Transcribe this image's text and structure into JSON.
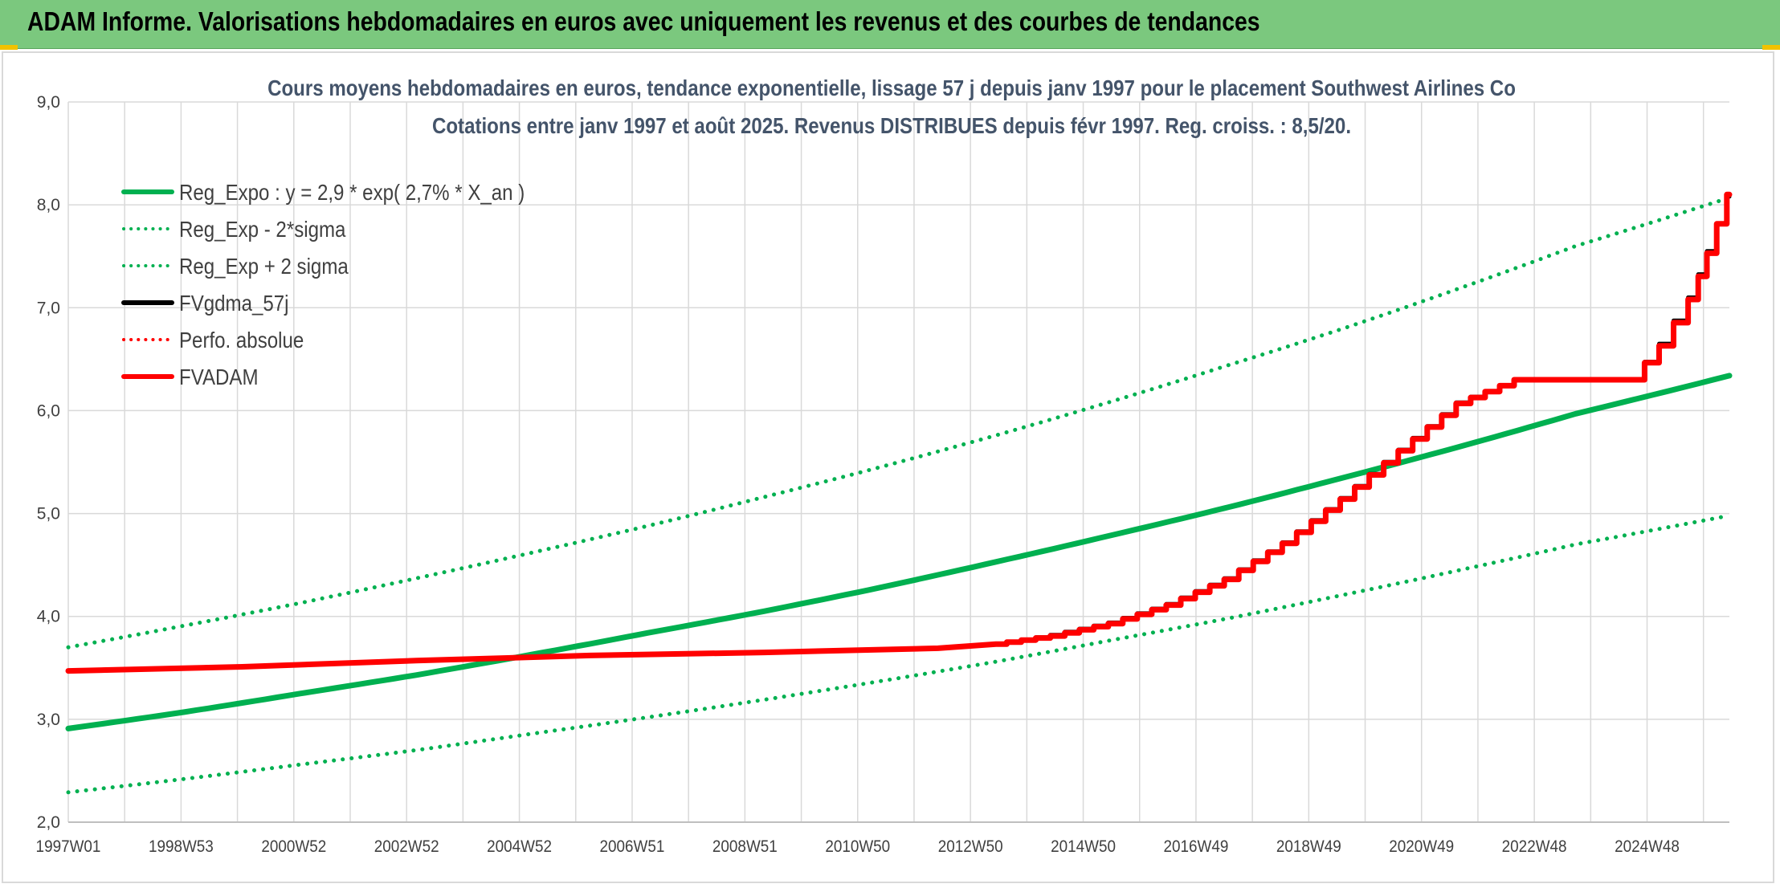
{
  "header": {
    "title": "ADAM Informe. Valorisations hebdomadaires en euros avec uniquement les revenus et des courbes de tendances"
  },
  "chart_data": {
    "type": "line",
    "title": "Cours moyens hebdomadaires en euros, tendance exponentielle, lissage 57 j depuis janv 1997 pour le placement Southwest Airlines Co",
    "subtitle": "Cotations entre janv 1997 et août 2025. Revenus DISTRIBUES depuis févr 1997. Reg. croiss. : 8,5/20.",
    "xlabel": "",
    "ylabel": "",
    "ylim": [
      2.0,
      9.0
    ],
    "y_ticks": [
      "2,0",
      "3,0",
      "4,0",
      "5,0",
      "6,0",
      "7,0",
      "8,0",
      "9,0"
    ],
    "x_ticks": [
      "1997W01",
      "1998W53",
      "2000W52",
      "2002W52",
      "2004W52",
      "2006W51",
      "2008W51",
      "2010W50",
      "2012W50",
      "2014W50",
      "2016W49",
      "2018W49",
      "2020W49",
      "2022W48",
      "2024W48"
    ],
    "xlim": [
      1997.0,
      2025.65
    ],
    "grid": true,
    "legend_position": "top-left",
    "series": [
      {
        "name": "Reg_Expo : y = 2,9 * exp( 2,7% *  X_an )",
        "color": "#00b050",
        "style": "solid",
        "x": [
          1997.0,
          1999.0,
          2001.0,
          2003.0,
          2005.0,
          2007.0,
          2009.0,
          2011.0,
          2013.0,
          2015.0,
          2017.0,
          2019.0,
          2021.0,
          2023.0,
          2025.65
        ],
        "values": [
          2.91,
          3.07,
          3.25,
          3.43,
          3.63,
          3.84,
          4.05,
          4.28,
          4.53,
          4.79,
          5.06,
          5.35,
          5.65,
          5.97,
          6.34
        ]
      },
      {
        "name": "Reg_Exp - 2*sigma",
        "color": "#00b050",
        "style": "dotted",
        "x": [
          1997.0,
          1999.0,
          2001.0,
          2003.0,
          2005.0,
          2007.0,
          2009.0,
          2011.0,
          2013.0,
          2015.0,
          2017.0,
          2019.0,
          2021.0,
          2023.0,
          2025.65
        ],
        "values": [
          2.29,
          2.42,
          2.56,
          2.7,
          2.86,
          3.02,
          3.19,
          3.37,
          3.56,
          3.77,
          3.98,
          4.21,
          4.45,
          4.7,
          4.98
        ]
      },
      {
        "name": "Reg_Exp + 2 sigma",
        "color": "#00b050",
        "style": "dotted",
        "x": [
          1997.0,
          1999.0,
          2001.0,
          2003.0,
          2005.0,
          2007.0,
          2009.0,
          2011.0,
          2013.0,
          2015.0,
          2017.0,
          2019.0,
          2021.0,
          2023.0,
          2025.65
        ],
        "values": [
          3.7,
          3.91,
          4.13,
          4.37,
          4.62,
          4.88,
          5.16,
          5.45,
          5.76,
          6.09,
          6.44,
          6.8,
          7.19,
          7.6,
          8.07
        ]
      },
      {
        "name": "FVgdma_57j",
        "color": "#000000",
        "style": "solid",
        "x": [
          1997.0,
          2000.0,
          2003.0,
          2006.0,
          2009.0,
          2012.0,
          2013.0,
          2014.0,
          2015.0,
          2016.0,
          2017.0,
          2018.0,
          2019.0,
          2020.0,
          2021.0,
          2022.0,
          2022.8,
          2023.5,
          2024.0,
          2024.5,
          2025.0,
          2025.3,
          2025.65
        ],
        "values": [
          3.47,
          3.51,
          3.57,
          3.62,
          3.65,
          3.69,
          3.73,
          3.82,
          3.94,
          4.12,
          4.37,
          4.72,
          5.15,
          5.62,
          6.08,
          6.3,
          6.3,
          6.3,
          6.3,
          6.65,
          7.1,
          7.55,
          8.08
        ]
      },
      {
        "name": "Perfo. absolue",
        "color": "#ff0000",
        "style": "dotted",
        "x": [],
        "values": []
      },
      {
        "name": "FVADAM",
        "color": "#ff0000",
        "style": "solid",
        "x": [
          1997.0,
          2000.0,
          2003.0,
          2006.0,
          2009.0,
          2012.0,
          2013.0,
          2014.0,
          2015.0,
          2016.0,
          2017.0,
          2018.0,
          2019.0,
          2020.0,
          2021.0,
          2022.0,
          2022.8,
          2023.5,
          2024.0,
          2024.5,
          2025.0,
          2025.3,
          2025.65
        ],
        "values": [
          3.47,
          3.51,
          3.57,
          3.62,
          3.65,
          3.69,
          3.73,
          3.81,
          3.93,
          4.11,
          4.36,
          4.71,
          5.14,
          5.61,
          6.07,
          6.3,
          6.3,
          6.3,
          6.3,
          6.63,
          7.08,
          7.53,
          8.1
        ]
      }
    ]
  }
}
